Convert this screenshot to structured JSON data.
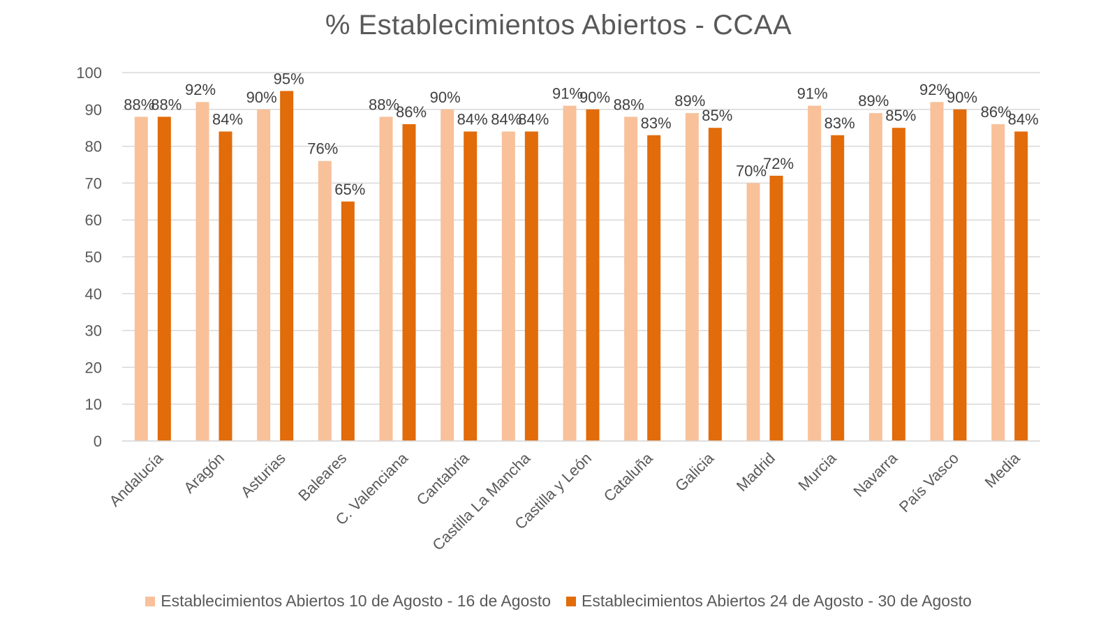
{
  "chart_data": {
    "type": "bar",
    "title": "% Establecimientos Abiertos - CCAA",
    "categories": [
      "Andalucía",
      "Aragón",
      "Asturias",
      "Baleares",
      "C. Valenciana",
      "Cantabria",
      "Castilla La Mancha",
      "Castilla y León",
      "Cataluña",
      "Galicia",
      "Madrid",
      "Murcia",
      "Navarra",
      "País Vasco",
      "Media"
    ],
    "series": [
      {
        "name": "Establecimientos Abiertos 10 de Agosto - 16 de Agosto",
        "color": "#F8C19A",
        "values": [
          88,
          92,
          90,
          76,
          88,
          90,
          84,
          91,
          88,
          89,
          70,
          91,
          89,
          92,
          86
        ],
        "labels": [
          "88%",
          "92%",
          "90%",
          "76%",
          "88%",
          "90%",
          "84%",
          "91%",
          "88%",
          "89%",
          "70%",
          "91%",
          "89%",
          "92%",
          "86%"
        ]
      },
      {
        "name": "Establecimientos Abiertos 24 de Agosto - 30 de Agosto",
        "color": "#E26B0A",
        "values": [
          88,
          84,
          95,
          65,
          86,
          84,
          84,
          90,
          83,
          85,
          72,
          83,
          85,
          90,
          84
        ],
        "labels": [
          "88%",
          "84%",
          "95%",
          "65%",
          "86%",
          "84%",
          "84%",
          "90%",
          "83%",
          "85%",
          "72%",
          "83%",
          "85%",
          "90%",
          "84%"
        ]
      }
    ],
    "ylim": [
      0,
      100
    ],
    "yticks": [
      0,
      10,
      20,
      30,
      40,
      50,
      60,
      70,
      80,
      90,
      100
    ],
    "ytick_labels": [
      "0",
      "10",
      "20",
      "30",
      "40",
      "50",
      "60",
      "70",
      "80",
      "90",
      "100"
    ],
    "grid": true,
    "legend_position": "bottom",
    "xlabel": "",
    "ylabel": ""
  }
}
